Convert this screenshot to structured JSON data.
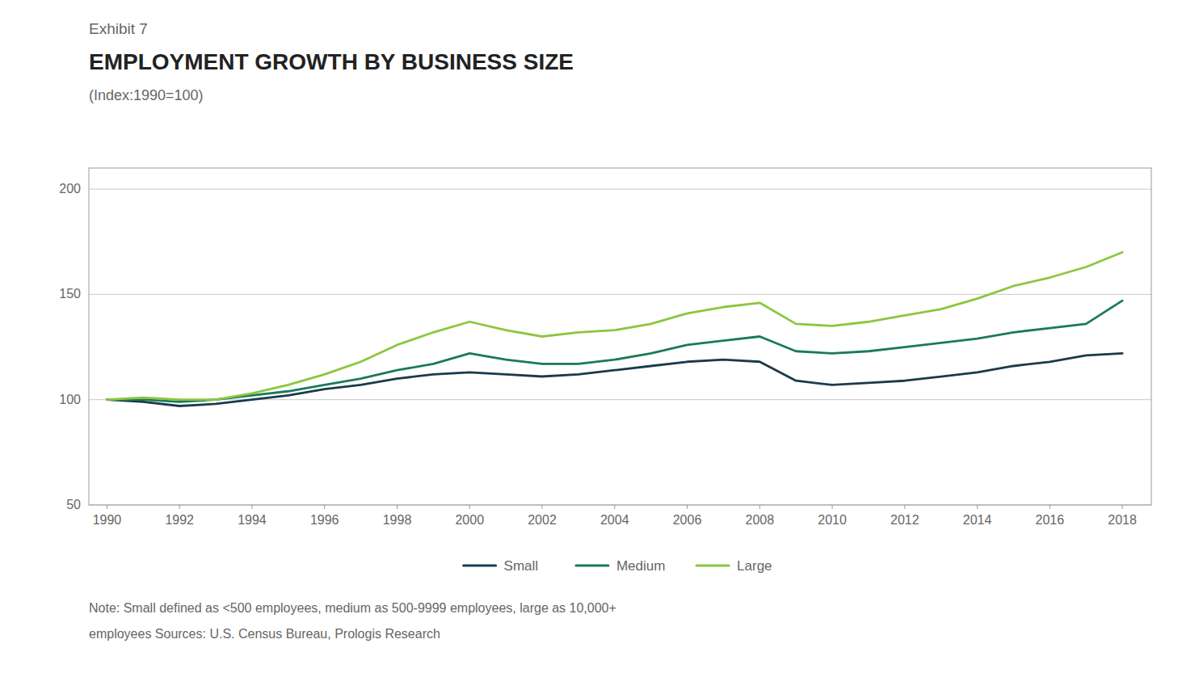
{
  "chart_data": {
    "type": "line",
    "title": "EMPLOYMENT GROWTH BY BUSINESS SIZE",
    "subtitle": "(Index:1990=100)",
    "annotations": [
      "Exhibit 7",
      "Note: Small defined as <500 employees, medium as 500-9999 employees, large as 10,000+",
      "employees  Sources: U.S. Census Bureau, Prologis Research"
    ],
    "x": [
      1990,
      1991,
      1992,
      1993,
      1994,
      1995,
      1996,
      1997,
      1998,
      1999,
      2000,
      2001,
      2002,
      2003,
      2004,
      2005,
      2006,
      2007,
      2008,
      2009,
      2010,
      2011,
      2012,
      2013,
      2014,
      2015,
      2016,
      2017,
      2018
    ],
    "series": [
      {
        "name": "Small",
        "color": "#1b3a4b",
        "values": [
          100,
          99,
          97,
          98,
          100,
          102,
          105,
          107,
          110,
          112,
          113,
          112,
          111,
          112,
          114,
          116,
          118,
          119,
          118,
          109,
          107,
          108,
          109,
          111,
          113,
          116,
          118,
          121,
          122
        ]
      },
      {
        "name": "Medium",
        "color": "#1a7a5a",
        "values": [
          100,
          100,
          99,
          100,
          102,
          104,
          107,
          110,
          114,
          117,
          122,
          119,
          117,
          117,
          119,
          122,
          126,
          128,
          130,
          123,
          122,
          123,
          125,
          127,
          129,
          132,
          134,
          136,
          147
        ]
      },
      {
        "name": "Large",
        "color": "#8dc63f",
        "values": [
          100,
          101,
          100,
          100,
          103,
          107,
          112,
          118,
          126,
          132,
          137,
          133,
          130,
          132,
          133,
          136,
          141,
          144,
          146,
          136,
          135,
          137,
          140,
          143,
          148,
          154,
          158,
          163,
          170
        ]
      }
    ],
    "xlim": [
      1989.5,
      2018.8
    ],
    "xticks": [
      1990,
      1992,
      1994,
      1996,
      1998,
      2000,
      2002,
      2004,
      2006,
      2008,
      2010,
      2012,
      2014,
      2016,
      2018
    ],
    "ylim": [
      50,
      210
    ],
    "yticks": [
      50,
      100,
      150,
      200
    ],
    "grid": true,
    "legend": "bottom"
  }
}
